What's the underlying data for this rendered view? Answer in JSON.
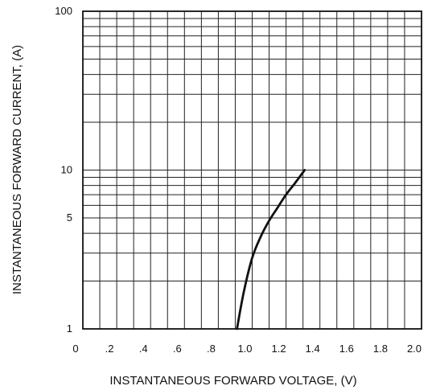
{
  "chart_data": {
    "type": "line",
    "title": "",
    "xlabel": "INSTANTANEOUS FORWARD VOLTAGE, (V)",
    "ylabel": "INSTANTANEOUS FORWARD CURRENT, (A)",
    "xlim": [
      0,
      2.0
    ],
    "ylim": [
      1,
      100
    ],
    "yscale": "log",
    "grid": true,
    "x_ticks": [
      {
        "value": 0,
        "label": "0"
      },
      {
        "value": 0.2,
        "label": ".2"
      },
      {
        "value": 0.4,
        "label": ".4"
      },
      {
        "value": 0.6,
        "label": ".6"
      },
      {
        "value": 0.8,
        "label": ".8"
      },
      {
        "value": 1.0,
        "label": "1.0"
      },
      {
        "value": 1.2,
        "label": "1.2"
      },
      {
        "value": 1.4,
        "label": "1.4"
      },
      {
        "value": 1.6,
        "label": "1.6"
      },
      {
        "value": 1.8,
        "label": "1.8"
      },
      {
        "value": 2.0,
        "label": "2.0"
      }
    ],
    "y_ticks": [
      {
        "value": 1,
        "label": "1"
      },
      {
        "value": 5,
        "label": "5"
      },
      {
        "value": 10,
        "label": "10"
      },
      {
        "value": 100,
        "label": "100"
      }
    ],
    "series": [
      {
        "x": [
          0.91,
          0.95,
          1.0,
          1.05,
          1.1,
          1.15,
          1.2,
          1.25,
          1.31
        ],
        "y": [
          1.0,
          1.7,
          2.8,
          3.8,
          4.8,
          5.8,
          7.0,
          8.2,
          10.0
        ]
      }
    ]
  }
}
